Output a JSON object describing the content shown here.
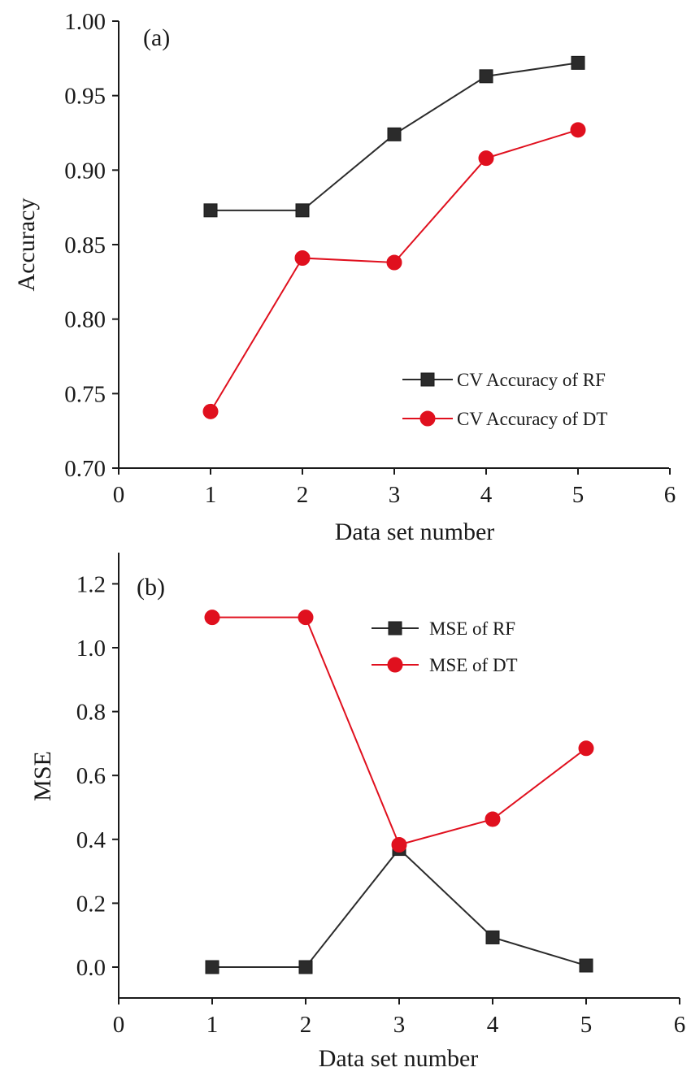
{
  "chart_data": [
    {
      "type": "line",
      "panel_label": "(a)",
      "xlabel": "Data set number",
      "ylabel": "Accuracy",
      "xlim": [
        0,
        6
      ],
      "ylim": [
        0.7,
        1.0
      ],
      "x_ticks": [
        "0",
        "1",
        "2",
        "3",
        "4",
        "5",
        "6"
      ],
      "y_ticks": [
        "0.70",
        "0.75",
        "0.80",
        "0.85",
        "0.90",
        "0.95",
        "1.00"
      ],
      "grid": false,
      "legend_position": "bottom-right",
      "x": [
        1,
        2,
        3,
        4,
        5
      ],
      "series": [
        {
          "name": "CV Accuracy of RF",
          "values": [
            0.873,
            0.873,
            0.924,
            0.963,
            0.972
          ],
          "color": "#2b2b2b",
          "marker": "square"
        },
        {
          "name": "CV Accuracy of DT",
          "values": [
            0.738,
            0.841,
            0.838,
            0.908,
            0.927
          ],
          "color": "#e0101e",
          "marker": "circle"
        }
      ]
    },
    {
      "type": "line",
      "panel_label": "(b)",
      "xlabel": "Data set number",
      "ylabel": "MSE",
      "xlim": [
        0,
        6
      ],
      "ylim": [
        -0.12,
        1.3
      ],
      "x_ticks": [
        "0",
        "1",
        "2",
        "3",
        "4",
        "5",
        "6"
      ],
      "y_ticks": [
        "0.0",
        "0.2",
        "0.4",
        "0.6",
        "0.8",
        "1.0",
        "1.2"
      ],
      "grid": false,
      "legend_position": "top-center",
      "x": [
        1,
        2,
        3,
        4,
        5
      ],
      "series": [
        {
          "name": "MSE of RF",
          "values": [
            0.0,
            0.0,
            0.37,
            0.093,
            0.005
          ],
          "color": "#2b2b2b",
          "marker": "square"
        },
        {
          "name": "MSE of DT",
          "values": [
            1.095,
            1.095,
            0.383,
            0.463,
            0.685
          ],
          "color": "#e0101e",
          "marker": "circle"
        }
      ]
    }
  ]
}
